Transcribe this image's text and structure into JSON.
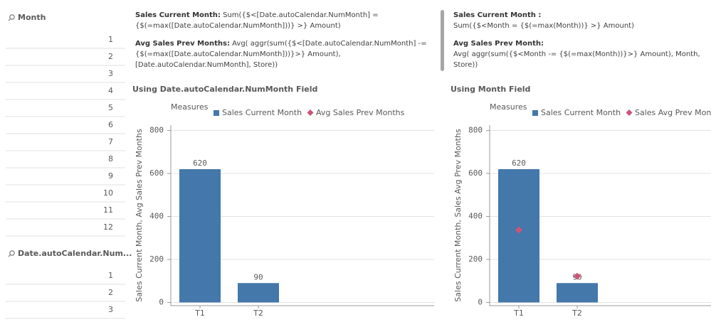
{
  "filters": [
    {
      "title": "Month",
      "items": [
        1,
        2,
        3,
        4,
        5,
        6,
        7,
        8,
        9,
        10,
        11,
        12
      ]
    },
    {
      "title": "Date.autoCalendar.Num...",
      "items": [
        1,
        2,
        3
      ]
    }
  ],
  "text_boxes": [
    {
      "lines": [
        {
          "heading": "Sales Current Month:",
          "text": "Sum({$<[Date.autoCalendar.NumMonth] = {$(=max([Date.autoCalendar.NumMonth]))} >} Amount)"
        },
        {
          "heading": "Avg Sales Prev Months:",
          "text": "Avg( aggr(sum({$<[Date.autoCalendar.NumMonth] -= {$(=max([Date.autoCalendar.NumMonth]))}>} Amount), [Date.autoCalendar.NumMonth], Store))"
        }
      ]
    },
    {
      "lines": [
        {
          "heading": "Sales Current Month :",
          "text": "Sum({$<Month = {$(=max(Month))} >} Amount)"
        },
        {
          "heading": "Avg Sales Prev Month:",
          "text": "Avg( aggr(sum({$<Month -= {$(=max(Month))}>} Amount), Month, Store))"
        }
      ]
    }
  ],
  "chart_data": [
    {
      "type": "combo",
      "title": "Using Date.autoCalendar.NumMonth Field",
      "legend_title": "Measures",
      "y_label": "Sales Current Month, Avg Sales Prev Months",
      "categories": [
        "T1",
        "T2"
      ],
      "series": [
        {
          "name": "Sales Current Month",
          "color": "#4477aa",
          "mark": "bar",
          "values": [
            620,
            90
          ]
        },
        {
          "name": "Avg Sales Prev Months",
          "color": "#cc5577",
          "mark": "diamond",
          "values": [
            null,
            null
          ]
        }
      ],
      "ylim": [
        -15,
        825
      ],
      "yticks": [
        0,
        200,
        400,
        600,
        800
      ],
      "grid": true
    },
    {
      "type": "combo",
      "title": "Using Month Field",
      "legend_title": "Measures",
      "y_label": "Sales Current Month, Sales Avg Prev Months",
      "categories": [
        "T1",
        "T2"
      ],
      "series": [
        {
          "name": "Sales Current Month",
          "color": "#4477aa",
          "mark": "bar",
          "values": [
            620,
            90
          ]
        },
        {
          "name": "Sales Avg Prev Months",
          "color": "#cc5577",
          "mark": "diamond",
          "values": [
            337,
            122
          ]
        }
      ],
      "ylim": [
        -15,
        825
      ],
      "yticks": [
        0,
        200,
        400,
        600,
        800
      ],
      "grid": true
    }
  ]
}
